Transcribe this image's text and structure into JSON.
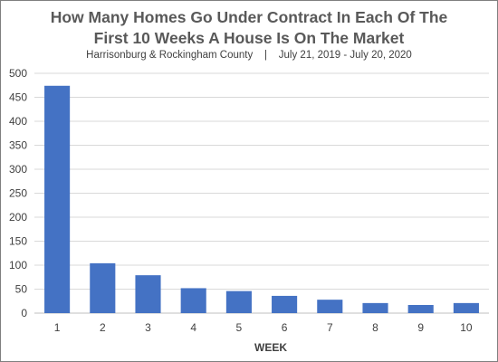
{
  "chart_data": {
    "type": "bar",
    "title_lines": [
      "How Many Homes Go Under Contract In Each Of The",
      "First 10 Weeks A House Is On The Market"
    ],
    "subtitle": "Harrisonburg & Rockingham County    |    July 21, 2019 - July 20, 2020",
    "xlabel": "WEEK",
    "ylabel": "",
    "ylim": [
      0,
      500
    ],
    "yticks": [
      0,
      50,
      100,
      150,
      200,
      250,
      300,
      350,
      400,
      450,
      500
    ],
    "categories": [
      "1",
      "2",
      "3",
      "4",
      "5",
      "6",
      "7",
      "8",
      "9",
      "10"
    ],
    "values": [
      474,
      104,
      79,
      52,
      46,
      36,
      28,
      21,
      17,
      21
    ],
    "grid": "horizontal",
    "bar_color": "#4472C4",
    "grid_color": "#d9d9d9"
  }
}
